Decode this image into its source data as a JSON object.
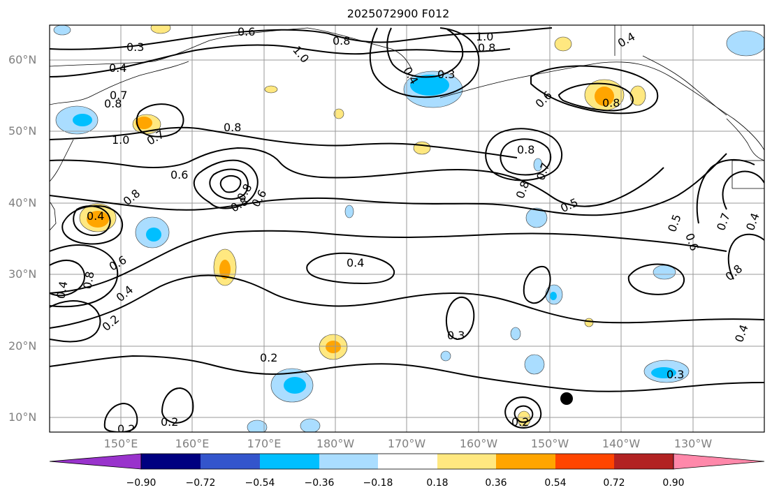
{
  "title": "2025072900 F012",
  "map": {
    "lat_labels": [
      "60°N",
      "50°N",
      "40°N",
      "30°N",
      "20°N",
      "10°N"
    ],
    "lon_labels": [
      "150°E",
      "160°E",
      "170°E",
      "180°W",
      "170°W",
      "160°W",
      "150°W",
      "140°W",
      "130°W"
    ],
    "gridlines": true,
    "contour_labels": [
      "0.3",
      "0.6",
      "1.0",
      "0.8",
      "1.0",
      "0.8",
      "0.4",
      "0.4",
      "0.7",
      "0.8",
      "0.4",
      "0.3",
      "0.6",
      "0.8",
      "1.0",
      "0.7",
      "0.8",
      "0.6",
      "0.8",
      "0.8",
      "0.7",
      "0.8",
      "0.4",
      "0.8",
      "0.8",
      "0.6",
      "0.5",
      "0.5",
      "0.6",
      "0.7",
      "0.4",
      "0.4",
      "0.6",
      "0.8",
      "0.8",
      "0.4",
      "0.2",
      "0.4",
      "0.3",
      "0.2",
      "0.4",
      "0.3",
      "0.2",
      "0.2",
      "0.2"
    ],
    "marker": "black filled circle"
  },
  "colorbar": {
    "tick_labels": [
      "−0.90",
      "−0.72",
      "−0.54",
      "−0.36",
      "−0.18",
      "0.18",
      "0.36",
      "0.54",
      "0.72",
      "0.90"
    ],
    "colors": [
      "#9933cc",
      "#000080",
      "#3355cc",
      "#00bfff",
      "#aaddff",
      "#ffffff",
      "#ffe880",
      "#ffa500",
      "#ff4500",
      "#b22222",
      "#ff88aa"
    ]
  }
}
